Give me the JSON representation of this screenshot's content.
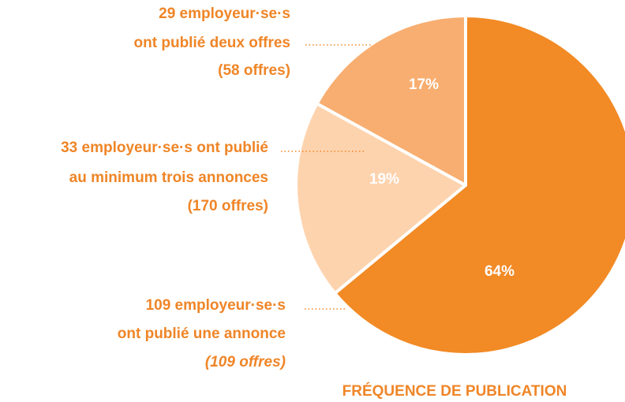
{
  "chart_data": {
    "type": "pie",
    "title": "FRÉQUENCE DE PUBLICATION",
    "categories": [
      [
        "109 employeur·se·s",
        "ont publié une annonce",
        "(109 offres)"
      ],
      [
        "33 employeur·se·s ont publié",
        "au minimum trois annonces",
        "(170 offres)"
      ],
      [
        "29 employeur·se·s",
        "ont publié deux offres",
        "(58 offres)"
      ]
    ],
    "values": [
      64,
      19,
      17
    ],
    "value_labels": [
      "64%",
      "19%",
      "17%"
    ],
    "colors": [
      "#f28a25",
      "#fdd3ae",
      "#f8ae70"
    ]
  }
}
